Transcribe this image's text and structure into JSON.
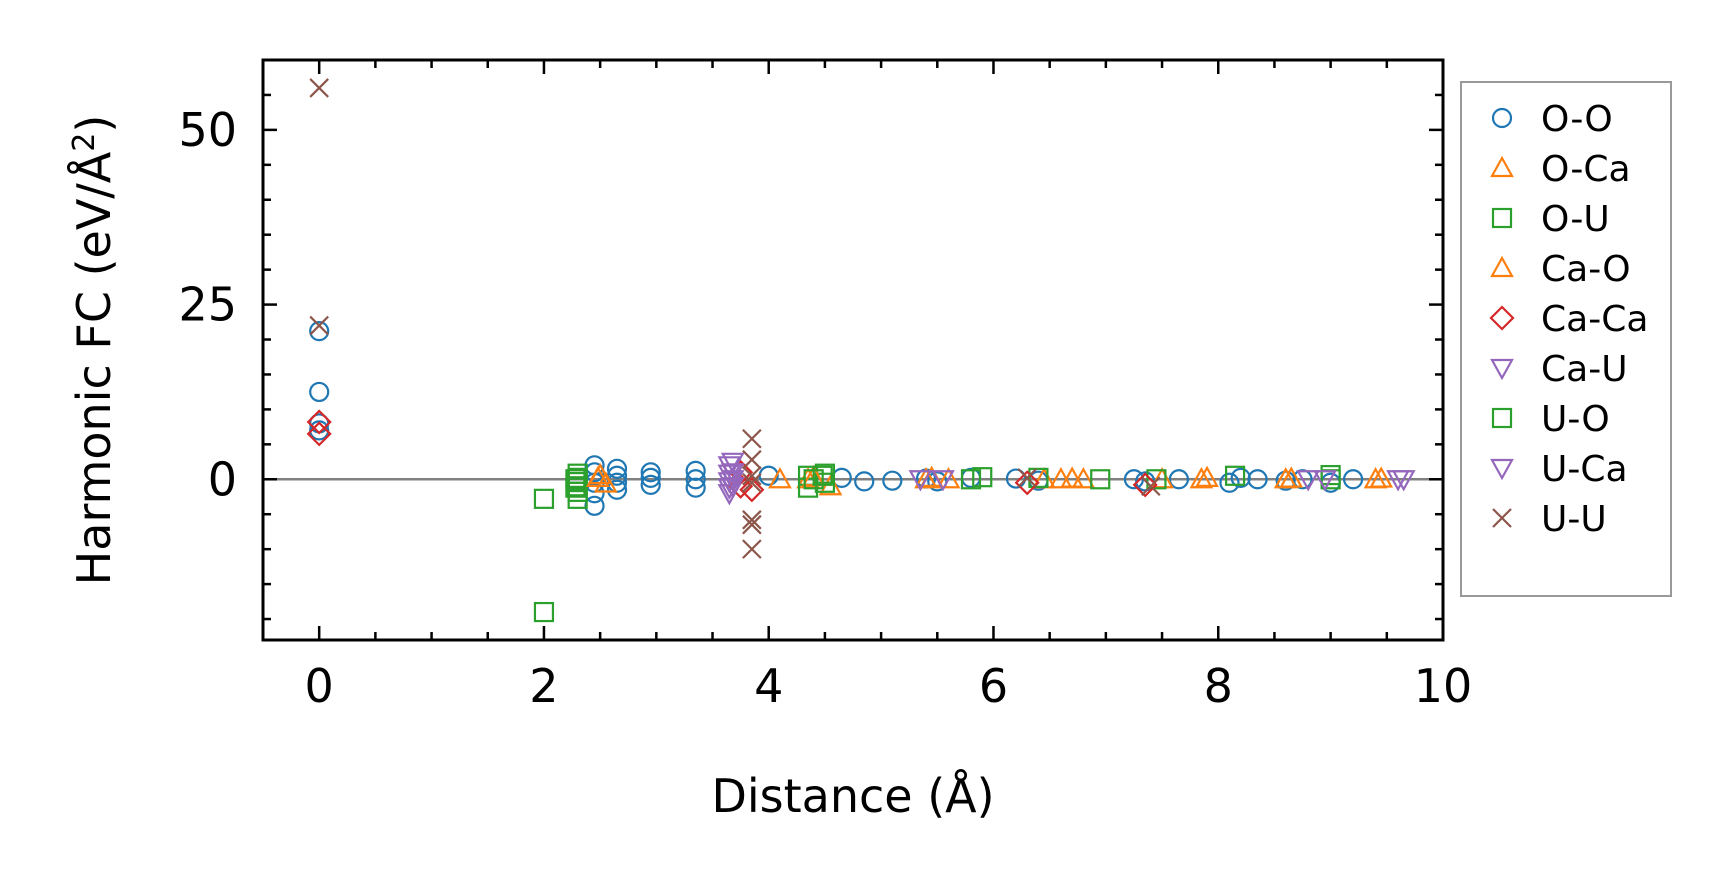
{
  "chart_data": {
    "type": "scatter",
    "xlabel": "Distance (Å)",
    "ylabel_main": "Harmonic FC (eV/Å",
    "ylabel_sup": "2",
    "ylabel_close": ")",
    "xlim": [
      -0.5,
      10.0
    ],
    "ylim": [
      -23,
      60
    ],
    "x_ticks": [
      0,
      2,
      4,
      6,
      8,
      10
    ],
    "x_tick_labels": [
      "0",
      "2",
      "4",
      "6",
      "8",
      "10"
    ],
    "y_ticks": [
      0,
      25,
      50
    ],
    "y_tick_labels": [
      "0",
      "25",
      "50"
    ],
    "zero_line": true,
    "grid": false,
    "legend_position": "outside-right",
    "series": [
      {
        "name": "O-O",
        "marker": "circle",
        "color": "#1f77b4",
        "points": [
          [
            0,
            21.2
          ],
          [
            0,
            12.5
          ],
          [
            0,
            8.0
          ],
          [
            0,
            7.0
          ],
          [
            2.45,
            2.0
          ],
          [
            2.45,
            1.0
          ],
          [
            2.45,
            -0.5
          ],
          [
            2.45,
            -2.0
          ],
          [
            2.45,
            -3.8
          ],
          [
            2.65,
            1.5
          ],
          [
            2.65,
            0.5
          ],
          [
            2.65,
            -0.5
          ],
          [
            2.65,
            -1.5
          ],
          [
            2.95,
            1.0
          ],
          [
            2.95,
            0.2
          ],
          [
            2.95,
            -0.8
          ],
          [
            3.35,
            1.2
          ],
          [
            3.35,
            0.0
          ],
          [
            3.35,
            -1.2
          ],
          [
            4.0,
            0.5
          ],
          [
            4.65,
            0.2
          ],
          [
            4.85,
            -0.3
          ],
          [
            5.1,
            -0.2
          ],
          [
            5.4,
            0.1
          ],
          [
            5.5,
            -0.3
          ],
          [
            5.8,
            0.2
          ],
          [
            6.2,
            0.1
          ],
          [
            6.4,
            -0.2
          ],
          [
            7.25,
            0.0
          ],
          [
            7.35,
            -0.3
          ],
          [
            7.65,
            0.0
          ],
          [
            8.1,
            -0.5
          ],
          [
            8.2,
            0.2
          ],
          [
            8.35,
            0.0
          ],
          [
            8.6,
            -0.2
          ],
          [
            8.75,
            0.0
          ],
          [
            9.0,
            -0.5
          ],
          [
            9.2,
            0.0
          ]
        ]
      },
      {
        "name": "O-Ca",
        "marker": "triangle-up",
        "color": "#ff7f0e",
        "points": [
          [
            2.5,
            0.6
          ],
          [
            2.55,
            -0.6
          ],
          [
            4.1,
            0.0
          ],
          [
            4.35,
            0.0
          ],
          [
            4.55,
            -1.0
          ],
          [
            5.4,
            0.0
          ],
          [
            5.6,
            0.0
          ],
          [
            6.45,
            0.0
          ],
          [
            6.6,
            0.0
          ],
          [
            6.8,
            0.0
          ],
          [
            7.5,
            0.0
          ],
          [
            7.85,
            0.0
          ],
          [
            8.6,
            0.0
          ],
          [
            9.4,
            0.0
          ]
        ]
      },
      {
        "name": "O-U",
        "marker": "square",
        "color": "#2ca02c",
        "points": [
          [
            2.0,
            -2.8
          ],
          [
            2.0,
            -19.0
          ],
          [
            2.3,
            0.8
          ],
          [
            2.3,
            0.2
          ],
          [
            2.3,
            -0.4
          ],
          [
            2.3,
            -1.0
          ],
          [
            2.3,
            -1.8
          ],
          [
            2.3,
            -2.8
          ],
          [
            4.35,
            0.5
          ],
          [
            4.35,
            -1.2
          ],
          [
            4.5,
            0.8
          ],
          [
            4.5,
            -0.5
          ],
          [
            5.8,
            0.0
          ],
          [
            5.9,
            0.3
          ],
          [
            6.4,
            0.2
          ],
          [
            6.95,
            0.0
          ],
          [
            7.45,
            0.0
          ],
          [
            8.15,
            0.5
          ],
          [
            9.0,
            0.6
          ]
        ]
      },
      {
        "name": "Ca-O",
        "marker": "triangle-up",
        "color": "#ff7f0e",
        "points": [
          [
            2.48,
            0.2
          ],
          [
            4.4,
            0.3
          ],
          [
            5.45,
            0.2
          ],
          [
            6.7,
            0.1
          ],
          [
            7.9,
            0.2
          ],
          [
            8.65,
            0.1
          ],
          [
            9.45,
            0.1
          ]
        ]
      },
      {
        "name": "Ca-Ca",
        "marker": "diamond",
        "color": "#d62728",
        "points": [
          [
            0,
            8.2
          ],
          [
            0,
            6.5
          ],
          [
            3.75,
            1.0
          ],
          [
            3.75,
            -1.0
          ],
          [
            3.85,
            -1.5
          ],
          [
            6.3,
            -0.5
          ],
          [
            7.35,
            -0.8
          ]
        ]
      },
      {
        "name": "Ca-U",
        "marker": "triangle-down",
        "color": "#9467bd",
        "points": [
          [
            3.65,
            2.0
          ],
          [
            3.65,
            0.8
          ],
          [
            3.65,
            -0.3
          ],
          [
            3.65,
            -1.2
          ],
          [
            3.65,
            -2.0
          ],
          [
            5.35,
            0.0
          ],
          [
            8.8,
            0.0
          ],
          [
            9.6,
            0.0
          ]
        ]
      },
      {
        "name": "U-O",
        "marker": "square",
        "color": "#2ca02c",
        "points": [
          [
            2.28,
            0.0
          ],
          [
            2.28,
            -1.2
          ],
          [
            4.4,
            0.0
          ],
          [
            4.48,
            0.5
          ],
          [
            9.0,
            0.0
          ]
        ]
      },
      {
        "name": "U-Ca",
        "marker": "triangle-down",
        "color": "#9467bd",
        "points": [
          [
            3.68,
            2.5
          ],
          [
            3.68,
            1.0
          ],
          [
            3.68,
            0.0
          ],
          [
            3.68,
            -1.0
          ],
          [
            5.55,
            0.0
          ],
          [
            8.95,
            0.0
          ],
          [
            9.65,
            0.0
          ]
        ]
      },
      {
        "name": "U-U",
        "marker": "x",
        "color": "#8c564b",
        "points": [
          [
            0,
            56.0
          ],
          [
            0,
            22.0
          ],
          [
            3.85,
            5.8
          ],
          [
            3.85,
            2.8
          ],
          [
            3.85,
            0.5
          ],
          [
            3.85,
            -0.5
          ],
          [
            3.85,
            -5.8
          ],
          [
            3.85,
            -6.5
          ],
          [
            3.85,
            -10.0
          ],
          [
            6.3,
            0.2
          ],
          [
            7.4,
            -1.0
          ]
        ]
      }
    ]
  }
}
